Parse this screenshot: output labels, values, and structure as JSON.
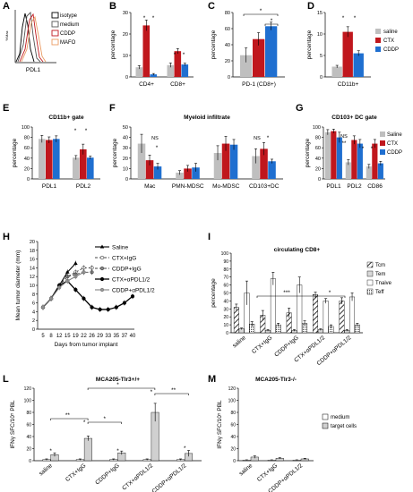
{
  "colors": {
    "saline": "#bfbfbf",
    "ctx": "#c0171d",
    "cddp": "#1f6fd0",
    "mafo": "#ea9b63",
    "green": "#3aaa35",
    "axis": "#000000"
  },
  "chart_data": [
    {
      "panel": "A",
      "type": "histogram-overlay",
      "xlabel": "PDL1",
      "ylabel": "%Max",
      "legend": [
        "isotype",
        "medium",
        "CDDP",
        "MAFO"
      ]
    },
    {
      "panel": "B",
      "type": "bar",
      "ylabel": "percentage",
      "ylim": [
        0,
        30
      ],
      "yticks": [
        0,
        10,
        20,
        30
      ],
      "categories": [
        "CD4+",
        "CD8+"
      ],
      "series": [
        {
          "values": [
            4.5,
            5.5
          ],
          "errors": [
            0.8,
            1.0
          ]
        },
        {
          "values": [
            24,
            12
          ],
          "errors": [
            2.5,
            1.2
          ]
        },
        {
          "values": [
            1.2,
            5.8
          ],
          "errors": [
            0.4,
            0.6
          ]
        }
      ],
      "annotations": [
        "*",
        "*",
        "*",
        "*"
      ]
    },
    {
      "panel": "C",
      "type": "bar",
      "ylabel": "percentage",
      "ylim": [
        0,
        80
      ],
      "yticks": [
        0,
        20,
        40,
        60,
        80
      ],
      "categories": [
        "PD-1 (CD8+)"
      ],
      "series": [
        {
          "values": [
            27
          ],
          "errors": [
            9
          ]
        },
        {
          "values": [
            47
          ],
          "errors": [
            8
          ]
        },
        {
          "values": [
            63
          ],
          "errors": [
            5
          ]
        }
      ],
      "annotations": [
        "*",
        "*"
      ]
    },
    {
      "panel": "D",
      "type": "bar",
      "ylabel": "percentage",
      "ylim": [
        0,
        15
      ],
      "yticks": [
        0,
        5,
        10,
        15
      ],
      "categories": [
        "CD11b+"
      ],
      "series": [
        {
          "name": "saline",
          "values": [
            2.4
          ],
          "errors": [
            0.3
          ]
        },
        {
          "name": "CTX",
          "values": [
            10.5
          ],
          "errors": [
            1.2
          ]
        },
        {
          "name": "CDDP",
          "values": [
            5.5
          ],
          "errors": [
            0.6
          ]
        }
      ],
      "annotations": [
        "*",
        "*"
      ]
    },
    {
      "panel": "E",
      "type": "bar",
      "title": "CD11b+ gate",
      "ylabel": "percentage",
      "ylim": [
        0,
        100
      ],
      "yticks": [
        0,
        20,
        40,
        60,
        80,
        100
      ],
      "categories": [
        "PDL1",
        "PDL2"
      ],
      "series": [
        {
          "values": [
            77,
            41
          ],
          "errors": [
            7,
            4
          ]
        },
        {
          "values": [
            75,
            57
          ],
          "errors": [
            6,
            10
          ]
        },
        {
          "values": [
            77,
            41
          ],
          "errors": [
            6,
            3
          ]
        }
      ],
      "annotations": [
        "*",
        "*"
      ]
    },
    {
      "panel": "F",
      "type": "bar",
      "title": "Myeloid infiltrate",
      "ylabel": "percentage",
      "ylim": [
        0,
        50
      ],
      "yticks": [
        0,
        10,
        20,
        30,
        40,
        50
      ],
      "categories": [
        "Mac",
        "PMN-MDSC",
        "Mo-MDSC",
        "CD103+DC"
      ],
      "series": [
        {
          "values": [
            34,
            6,
            25,
            22
          ],
          "errors": [
            9,
            2,
            7,
            7
          ]
        },
        {
          "values": [
            18,
            10,
            34,
            29
          ],
          "errors": [
            5,
            3,
            7,
            6
          ]
        },
        {
          "values": [
            12,
            11,
            33,
            17
          ],
          "errors": [
            3,
            4,
            5,
            2
          ]
        }
      ],
      "annotations": [
        "NS",
        "*",
        "NS",
        "*"
      ]
    },
    {
      "panel": "G",
      "type": "bar",
      "title": "CD103+ DC gate",
      "ylabel": "percentage",
      "ylim": [
        0,
        100
      ],
      "yticks": [
        0,
        20,
        40,
        60,
        80,
        100
      ],
      "categories": [
        "PDL1",
        "PDL2",
        "CD86"
      ],
      "legend": [
        "Saline",
        "CTX",
        "CDDP"
      ],
      "series": [
        {
          "name": "Saline",
          "values": [
            90,
            32,
            24
          ],
          "errors": [
            5,
            5,
            4
          ]
        },
        {
          "name": "CTX",
          "values": [
            92,
            75,
            68
          ],
          "errors": [
            4,
            8,
            8
          ]
        },
        {
          "name": "CDDP",
          "values": [
            80,
            68,
            30
          ],
          "errors": [
            10,
            8,
            4
          ]
        }
      ],
      "annotations": [
        "NS",
        "**",
        "*",
        "*"
      ]
    },
    {
      "panel": "H",
      "type": "line",
      "xlabel": "Days from tumor implant",
      "ylabel": "Mean tumor diameter (mm)",
      "ylim": [
        0,
        20
      ],
      "yticks": [
        0,
        2,
        4,
        6,
        8,
        10,
        12,
        14,
        16,
        18,
        20
      ],
      "xticklabels": [
        "5",
        "8",
        "12",
        "15",
        "19",
        "22",
        "26",
        "29",
        "33",
        "35",
        "37",
        "40"
      ],
      "x": [
        5,
        8,
        12,
        15,
        19,
        22,
        26,
        29,
        33,
        35,
        37,
        40
      ],
      "series": [
        {
          "name": "Saline",
          "values": [
            5,
            7,
            10,
            13,
            15,
            null,
            null,
            null,
            null,
            null,
            null,
            null
          ]
        },
        {
          "name": "CTX+IgG",
          "values": [
            5,
            7,
            10,
            12,
            13,
            14,
            14,
            null,
            null,
            null,
            null,
            null
          ]
        },
        {
          "name": "CDDP+IgG",
          "values": [
            5,
            7,
            10,
            12,
            12.5,
            13,
            13,
            null,
            null,
            null,
            null,
            null
          ]
        },
        {
          "name": "CTX+αPDL1/2",
          "values": [
            5,
            7,
            10,
            11,
            9,
            7,
            5,
            4.5,
            4.5,
            5,
            6,
            7.5
          ]
        },
        {
          "name": "CDDP+αPDL1/2",
          "values": [
            5,
            7,
            9.5,
            11,
            12,
            13,
            null,
            null,
            null,
            null,
            null,
            null
          ]
        }
      ]
    },
    {
      "panel": "I",
      "type": "bar",
      "title": "circulating CD8+",
      "ylabel": "percentage",
      "ylim": [
        0,
        100
      ],
      "yticks": [
        0,
        10,
        20,
        30,
        40,
        50,
        60,
        70,
        80,
        90,
        100
      ],
      "categories": [
        "saline",
        "CTX+IgG",
        "CDDP+IgG",
        "CTX+αPDL1/2",
        "CDDP+αPDL1/2"
      ],
      "legend": [
        "Tcm",
        "Tem",
        "Tnaive",
        "Teff"
      ],
      "series": [
        {
          "name": "Tcm",
          "values": [
            32,
            22,
            25,
            48,
            40
          ],
          "errors": [
            4,
            6,
            6,
            3,
            4
          ]
        },
        {
          "name": "Tem",
          "values": [
            5,
            3,
            3,
            4,
            3
          ],
          "errors": [
            1,
            1,
            1,
            1,
            1
          ]
        },
        {
          "name": "Tnaive",
          "values": [
            50,
            68,
            60,
            40,
            45
          ],
          "errors": [
            15,
            8,
            10,
            3,
            5
          ]
        },
        {
          "name": "Teff",
          "values": [
            11,
            10,
            12,
            8,
            10
          ],
          "errors": [
            3,
            2,
            3,
            2,
            2
          ]
        }
      ],
      "annotations": [
        "***",
        "*"
      ]
    },
    {
      "panel": "L",
      "type": "bar",
      "title": "MCA205-Tlr3+/+",
      "ylabel": "IFNγ SFC/10⁵ PBL",
      "ylim": [
        0,
        120
      ],
      "yticks": [
        0,
        20,
        40,
        60,
        80,
        100,
        120
      ],
      "categories": [
        "saline",
        "CTX+IgG",
        "CDDP+IgG",
        "CTX+αPDL1/2",
        "CDDP+αPDL1/2"
      ],
      "series": [
        {
          "name": "medium",
          "values": [
            2,
            2,
            2,
            2,
            2
          ],
          "errors": [
            1,
            1,
            1,
            1,
            1
          ]
        },
        {
          "name": "target cells",
          "values": [
            10,
            37,
            13,
            80,
            12
          ],
          "errors": [
            3,
            4,
            3,
            15,
            5
          ]
        }
      ],
      "annotations": [
        "*",
        "*",
        "*",
        "*",
        "*",
        "**",
        "*",
        "*",
        "**"
      ]
    },
    {
      "panel": "M",
      "type": "bar",
      "title": "MCA205-Tlr3-/-",
      "ylabel": "IFNγ SFC/10⁵ PBL",
      "ylim": [
        0,
        120
      ],
      "yticks": [
        0,
        20,
        40,
        60,
        80,
        100,
        120
      ],
      "categories": [
        "saline",
        "CTX+IgG",
        "CDDP+αPDL1/2"
      ],
      "legend": [
        "medium",
        "target cells"
      ],
      "series": [
        {
          "name": "medium",
          "values": [
            1,
            1,
            1
          ],
          "errors": [
            0.5,
            0.5,
            0.5
          ]
        },
        {
          "name": "target cells",
          "values": [
            6,
            4,
            3
          ],
          "errors": [
            2,
            1,
            1
          ]
        }
      ]
    }
  ]
}
